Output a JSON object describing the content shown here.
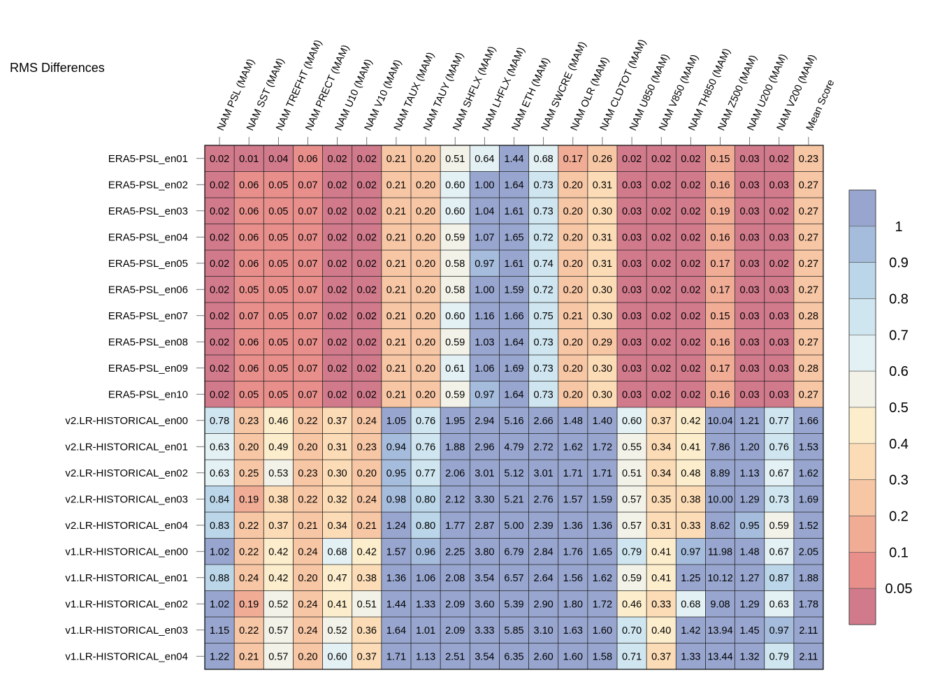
{
  "chart_data": {
    "type": "heatmap",
    "title": "RMS Differences",
    "columns": [
      "NAM PSL (MAM)",
      "NAM SST (MAM)",
      "NAM TREFHT (MAM)",
      "NAM PRECT (MAM)",
      "NAM U10 (MAM)",
      "NAM V10 (MAM)",
      "NAM TAUX (MAM)",
      "NAM TAUY (MAM)",
      "NAM SHFLX (MAM)",
      "NAM LHFLX (MAM)",
      "NAM ETH (MAM)",
      "NAM SWCRE (MAM)",
      "NAM OLR (MAM)",
      "NAM CLDTOT (MAM)",
      "NAM U850 (MAM)",
      "NAM V850 (MAM)",
      "NAM TH850 (MAM)",
      "NAM Z500 (MAM)",
      "NAM U200 (MAM)",
      "NAM V200 (MAM)",
      "Mean Score"
    ],
    "rows": [
      "ERA5-PSL_en01",
      "ERA5-PSL_en02",
      "ERA5-PSL_en03",
      "ERA5-PSL_en04",
      "ERA5-PSL_en05",
      "ERA5-PSL_en06",
      "ERA5-PSL_en07",
      "ERA5-PSL_en08",
      "ERA5-PSL_en09",
      "ERA5-PSL_en10",
      "v2.LR-HISTORICAL_en00",
      "v2.LR-HISTORICAL_en01",
      "v2.LR-HISTORICAL_en02",
      "v2.LR-HISTORICAL_en03",
      "v2.LR-HISTORICAL_en04",
      "v1.LR-HISTORICAL_en00",
      "v1.LR-HISTORICAL_en01",
      "v1.LR-HISTORICAL_en02",
      "v1.LR-HISTORICAL_en03",
      "v1.LR-HISTORICAL_en04"
    ],
    "values": [
      [
        "0.02",
        "0.01",
        "0.04",
        "0.06",
        "0.02",
        "0.02",
        "0.21",
        "0.20",
        "0.51",
        "0.64",
        "1.44",
        "0.68",
        "0.17",
        "0.26",
        "0.02",
        "0.02",
        "0.02",
        "0.15",
        "0.03",
        "0.02",
        "0.23"
      ],
      [
        "0.02",
        "0.06",
        "0.05",
        "0.07",
        "0.02",
        "0.02",
        "0.21",
        "0.20",
        "0.60",
        "1.00",
        "1.64",
        "0.73",
        "0.20",
        "0.31",
        "0.03",
        "0.02",
        "0.02",
        "0.16",
        "0.03",
        "0.03",
        "0.27"
      ],
      [
        "0.02",
        "0.06",
        "0.05",
        "0.07",
        "0.02",
        "0.02",
        "0.21",
        "0.20",
        "0.60",
        "1.04",
        "1.61",
        "0.73",
        "0.20",
        "0.30",
        "0.03",
        "0.02",
        "0.02",
        "0.19",
        "0.03",
        "0.02",
        "0.27"
      ],
      [
        "0.02",
        "0.06",
        "0.05",
        "0.07",
        "0.02",
        "0.02",
        "0.21",
        "0.20",
        "0.59",
        "1.07",
        "1.65",
        "0.72",
        "0.20",
        "0.31",
        "0.03",
        "0.02",
        "0.02",
        "0.16",
        "0.03",
        "0.03",
        "0.27"
      ],
      [
        "0.02",
        "0.06",
        "0.05",
        "0.07",
        "0.02",
        "0.02",
        "0.21",
        "0.20",
        "0.58",
        "0.97",
        "1.61",
        "0.74",
        "0.20",
        "0.31",
        "0.03",
        "0.02",
        "0.02",
        "0.17",
        "0.03",
        "0.02",
        "0.27"
      ],
      [
        "0.02",
        "0.05",
        "0.05",
        "0.07",
        "0.02",
        "0.02",
        "0.21",
        "0.20",
        "0.58",
        "1.00",
        "1.59",
        "0.72",
        "0.20",
        "0.30",
        "0.03",
        "0.02",
        "0.02",
        "0.17",
        "0.03",
        "0.03",
        "0.27"
      ],
      [
        "0.02",
        "0.07",
        "0.05",
        "0.07",
        "0.02",
        "0.02",
        "0.21",
        "0.20",
        "0.60",
        "1.16",
        "1.66",
        "0.75",
        "0.21",
        "0.30",
        "0.03",
        "0.02",
        "0.02",
        "0.15",
        "0.03",
        "0.03",
        "0.28"
      ],
      [
        "0.02",
        "0.06",
        "0.05",
        "0.07",
        "0.02",
        "0.02",
        "0.21",
        "0.20",
        "0.59",
        "1.03",
        "1.64",
        "0.73",
        "0.20",
        "0.29",
        "0.03",
        "0.02",
        "0.02",
        "0.16",
        "0.03",
        "0.03",
        "0.27"
      ],
      [
        "0.02",
        "0.06",
        "0.05",
        "0.07",
        "0.02",
        "0.02",
        "0.21",
        "0.20",
        "0.61",
        "1.06",
        "1.69",
        "0.73",
        "0.20",
        "0.30",
        "0.03",
        "0.02",
        "0.02",
        "0.17",
        "0.03",
        "0.03",
        "0.28"
      ],
      [
        "0.02",
        "0.05",
        "0.05",
        "0.07",
        "0.02",
        "0.02",
        "0.21",
        "0.20",
        "0.59",
        "0.97",
        "1.64",
        "0.73",
        "0.20",
        "0.30",
        "0.03",
        "0.02",
        "0.02",
        "0.16",
        "0.03",
        "0.03",
        "0.27"
      ],
      [
        "0.78",
        "0.23",
        "0.46",
        "0.22",
        "0.37",
        "0.24",
        "1.05",
        "0.76",
        "1.95",
        "2.94",
        "5.16",
        "2.66",
        "1.48",
        "1.40",
        "0.60",
        "0.37",
        "0.42",
        "10.04",
        "1.21",
        "0.77",
        "1.66"
      ],
      [
        "0.63",
        "0.20",
        "0.49",
        "0.20",
        "0.31",
        "0.23",
        "0.94",
        "0.76",
        "1.88",
        "2.96",
        "4.79",
        "2.72",
        "1.62",
        "1.72",
        "0.55",
        "0.34",
        "0.41",
        "7.86",
        "1.20",
        "0.76",
        "1.53"
      ],
      [
        "0.63",
        "0.25",
        "0.53",
        "0.23",
        "0.30",
        "0.20",
        "0.95",
        "0.77",
        "2.06",
        "3.01",
        "5.12",
        "3.01",
        "1.71",
        "1.71",
        "0.51",
        "0.34",
        "0.48",
        "8.89",
        "1.13",
        "0.67",
        "1.62"
      ],
      [
        "0.84",
        "0.19",
        "0.38",
        "0.22",
        "0.32",
        "0.24",
        "0.98",
        "0.80",
        "2.12",
        "3.30",
        "5.21",
        "2.76",
        "1.57",
        "1.59",
        "0.57",
        "0.35",
        "0.38",
        "10.00",
        "1.29",
        "0.73",
        "1.69"
      ],
      [
        "0.83",
        "0.22",
        "0.37",
        "0.21",
        "0.34",
        "0.21",
        "1.24",
        "0.80",
        "1.77",
        "2.87",
        "5.00",
        "2.39",
        "1.36",
        "1.36",
        "0.57",
        "0.31",
        "0.33",
        "8.62",
        "0.95",
        "0.59",
        "1.52"
      ],
      [
        "1.02",
        "0.22",
        "0.42",
        "0.24",
        "0.68",
        "0.42",
        "1.57",
        "0.96",
        "2.25",
        "3.80",
        "6.79",
        "2.84",
        "1.76",
        "1.65",
        "0.79",
        "0.41",
        "0.97",
        "11.98",
        "1.48",
        "0.67",
        "2.05"
      ],
      [
        "0.88",
        "0.24",
        "0.42",
        "0.20",
        "0.47",
        "0.38",
        "1.36",
        "1.06",
        "2.08",
        "3.54",
        "6.57",
        "2.64",
        "1.56",
        "1.62",
        "0.59",
        "0.41",
        "1.25",
        "10.12",
        "1.27",
        "0.87",
        "1.88"
      ],
      [
        "1.02",
        "0.19",
        "0.52",
        "0.24",
        "0.41",
        "0.51",
        "1.44",
        "1.33",
        "2.09",
        "3.60",
        "5.39",
        "2.90",
        "1.80",
        "1.72",
        "0.46",
        "0.33",
        "0.68",
        "9.08",
        "1.29",
        "0.63",
        "1.78"
      ],
      [
        "1.15",
        "0.22",
        "0.57",
        "0.24",
        "0.52",
        "0.36",
        "1.64",
        "1.01",
        "2.09",
        "3.33",
        "5.85",
        "3.10",
        "1.63",
        "1.60",
        "0.70",
        "0.40",
        "1.42",
        "13.94",
        "1.45",
        "0.97",
        "2.11"
      ],
      [
        "1.22",
        "0.21",
        "0.57",
        "0.20",
        "0.60",
        "0.37",
        "1.71",
        "1.13",
        "2.51",
        "3.54",
        "6.35",
        "2.60",
        "1.60",
        "1.58",
        "0.71",
        "0.37",
        "1.33",
        "13.44",
        "1.32",
        "0.79",
        "2.11"
      ]
    ],
    "colorbar": {
      "labels": [
        "1",
        "0.9",
        "0.8",
        "0.7",
        "0.6",
        "0.5",
        "0.4",
        "0.3",
        "0.2",
        "0.1",
        "0.05"
      ],
      "bins": [
        {
          "min": 1.0,
          "color": "#98a6cf"
        },
        {
          "min": 0.9,
          "color": "#a5bcdc"
        },
        {
          "min": 0.8,
          "color": "#bbd6e9"
        },
        {
          "min": 0.7,
          "color": "#cfe5ef"
        },
        {
          "min": 0.6,
          "color": "#e3f0f4"
        },
        {
          "min": 0.5,
          "color": "#f3f2e8"
        },
        {
          "min": 0.4,
          "color": "#fcedcc"
        },
        {
          "min": 0.3,
          "color": "#fcdcb6"
        },
        {
          "min": 0.2,
          "color": "#f7c6a4"
        },
        {
          "min": 0.1,
          "color": "#f1ac96"
        },
        {
          "min": 0.05,
          "color": "#e88f8c"
        },
        {
          "min": 0.0,
          "color": "#d17a8c"
        }
      ]
    }
  }
}
